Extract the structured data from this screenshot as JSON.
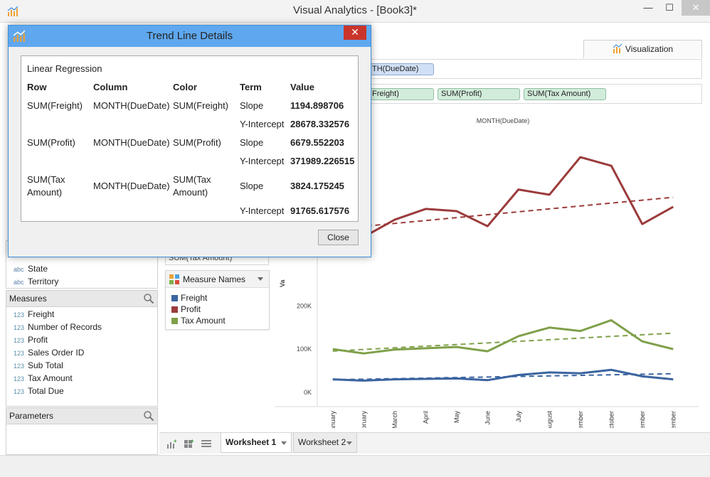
{
  "window": {
    "title": "Visual Analytics - [Book3]*",
    "min_label": "—",
    "max_label": "☐",
    "close_label": "✕"
  },
  "dialog": {
    "title": "Trend Line Details",
    "close_x": "✕",
    "group_title": "Linear Regression",
    "headers": {
      "row": "Row",
      "column": "Column",
      "color": "Color",
      "term": "Term",
      "value": "Value"
    },
    "rows": [
      {
        "row": "SUM(Freight)",
        "column": "MONTH(DueDate)",
        "color": "SUM(Freight)",
        "terms": [
          {
            "term": "Slope",
            "value": "1194.898706"
          },
          {
            "term": "Y-Intercept",
            "value": "28678.332576"
          }
        ]
      },
      {
        "row": "SUM(Profit)",
        "column": "MONTH(DueDate)",
        "color": "SUM(Profit)",
        "terms": [
          {
            "term": "Slope",
            "value": "6679.552203"
          },
          {
            "term": "Y-Intercept",
            "value": "371989.226515"
          }
        ]
      },
      {
        "row": "SUM(Tax Amount)",
        "column": "MONTH(DueDate)",
        "color": "SUM(Tax Amount)",
        "terms": [
          {
            "term": "Slope",
            "value": "3824.175245"
          },
          {
            "term": "Y-Intercept",
            "value": "91765.617576"
          }
        ]
      }
    ],
    "close_button": "Close"
  },
  "dimensions": {
    "items": [
      {
        "type": "abc",
        "label": "State"
      },
      {
        "type": "abc",
        "label": "Territory"
      }
    ]
  },
  "measures": {
    "header": "Measures",
    "items": [
      {
        "type": "123",
        "label": "Freight"
      },
      {
        "type": "123",
        "label": "Number of Records"
      },
      {
        "type": "123",
        "label": "Profit"
      },
      {
        "type": "123",
        "label": "Sales Order ID"
      },
      {
        "type": "123",
        "label": "Sub Total"
      },
      {
        "type": "123",
        "label": "Tax Amount"
      },
      {
        "type": "123",
        "label": "Total Due"
      }
    ]
  },
  "parameters": {
    "header": "Parameters"
  },
  "mid_shelf_fragment": "SUM(Tax Amount)",
  "legend": {
    "title": "Measure Names",
    "items": [
      {
        "label": "Freight",
        "color": "#3b64a0"
      },
      {
        "label": "Profit",
        "color": "#9b3b3b"
      },
      {
        "label": "Tax Amount",
        "color": "#7fa04a"
      }
    ]
  },
  "visualization_tab": "Visualization",
  "columns_shelf": {
    "pills": [
      "TH(DueDate)"
    ]
  },
  "rows_shelf": {
    "pills": [
      "Freight)",
      "SUM(Profit)",
      "SUM(Tax Amount)"
    ]
  },
  "worksheet_tabs": [
    {
      "label": "Worksheet 1",
      "active": true
    },
    {
      "label": "Worksheet 2",
      "active": false
    }
  ],
  "chart_data": {
    "type": "line",
    "title": "MONTH(DueDate)",
    "ylabel": "Va",
    "categories": [
      "January",
      "February",
      "March",
      "April",
      "May",
      "June",
      "July",
      "August",
      "September",
      "October",
      "November",
      "December"
    ],
    "yticks": [
      "0K",
      "100K",
      "200K"
    ],
    "ylim": [
      -30000,
      560000
    ],
    "series": [
      {
        "name": "Freight",
        "color": "#3b64a0",
        "values": [
          30000,
          27000,
          30000,
          31000,
          32000,
          28000,
          40000,
          46000,
          44000,
          52000,
          37000,
          30000
        ]
      },
      {
        "name": "Profit",
        "color": "#9b3b3b",
        "values": [
          330000,
          360000,
          400000,
          425000,
          420000,
          385000,
          470000,
          458000,
          545000,
          525000,
          390000,
          430000
        ]
      },
      {
        "name": "Tax Amount",
        "color": "#7fa04a",
        "values": [
          100000,
          90000,
          99000,
          102000,
          105000,
          95000,
          130000,
          150000,
          142000,
          167000,
          118000,
          100000
        ]
      }
    ],
    "trendlines": [
      {
        "name": "Freight trend",
        "color": "#3b64a0",
        "start": 29000,
        "end": 43000
      },
      {
        "name": "Profit trend",
        "color": "#9b3b3b",
        "start": 378000,
        "end": 452000
      },
      {
        "name": "Tax Amount trend",
        "color": "#7fa04a",
        "start": 95500,
        "end": 137000
      }
    ]
  }
}
